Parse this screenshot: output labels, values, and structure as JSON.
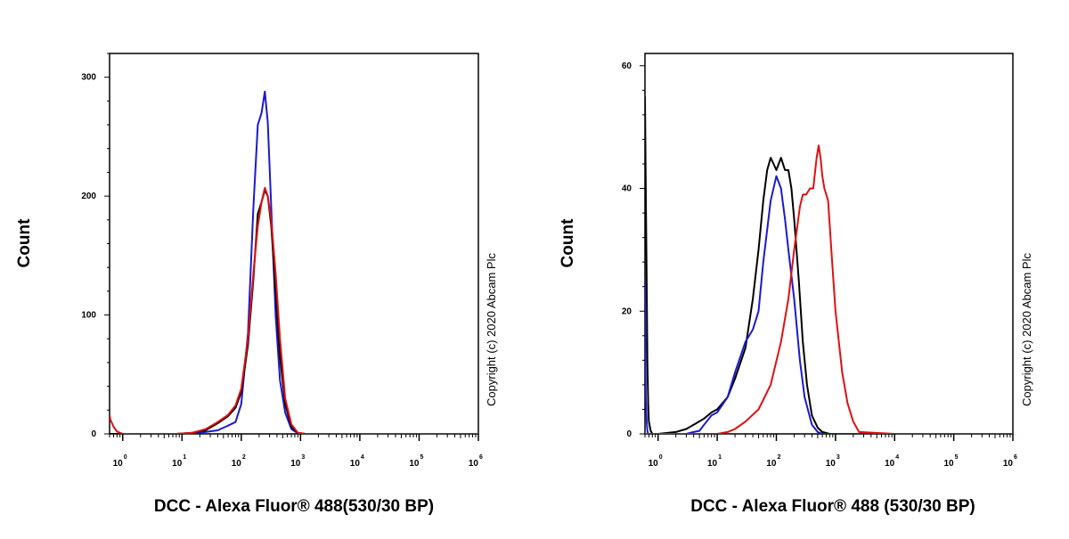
{
  "chart_data": [
    {
      "type": "line",
      "xlabel": "DCC - Alexa Fluor® 488(530/30 BP)",
      "ylabel": "Count",
      "x_scale": "log",
      "xlim": [
        0.6,
        1000000
      ],
      "ylim": [
        0,
        320
      ],
      "yticks": [
        0,
        100,
        200,
        300
      ],
      "xticks": [
        {
          "value": 1,
          "base": "10",
          "exp": "0"
        },
        {
          "value": 10,
          "base": "10",
          "exp": "1"
        },
        {
          "value": 100,
          "base": "10",
          "exp": "2"
        },
        {
          "value": 1000,
          "base": "10",
          "exp": "3"
        },
        {
          "value": 10000,
          "base": "10",
          "exp": "4"
        },
        {
          "value": 100000,
          "base": "10",
          "exp": "5"
        },
        {
          "value": 1000000,
          "base": "10",
          "exp": "6"
        }
      ],
      "copyright": "Copyright (c) 2020 Abcam Plc",
      "series": [
        {
          "color": "#1a1ad0",
          "x": [
            0.6,
            10,
            20,
            40,
            60,
            80,
            100,
            130,
            160,
            190,
            220,
            250,
            280,
            320,
            380,
            450,
            550,
            700,
            900,
            1200,
            10000,
            1000000
          ],
          "y": [
            0,
            0,
            1,
            3,
            7,
            10,
            25,
            85,
            190,
            260,
            270,
            288,
            262,
            190,
            100,
            45,
            18,
            4,
            0.5,
            0,
            0,
            0
          ]
        },
        {
          "color": "#000000",
          "x": [
            0.6,
            8,
            15,
            25,
            40,
            60,
            80,
            100,
            130,
            160,
            190,
            220,
            250,
            280,
            320,
            380,
            450,
            550,
            700,
            900,
            1200,
            10000,
            1000000
          ],
          "y": [
            0,
            0,
            1,
            3,
            9,
            15,
            22,
            35,
            75,
            130,
            185,
            195,
            205,
            200,
            175,
            120,
            65,
            25,
            6,
            1,
            0,
            0,
            0
          ]
        },
        {
          "color": "#e01010",
          "x": [
            0.6,
            0.62,
            0.7,
            0.8,
            1,
            8,
            15,
            25,
            40,
            60,
            80,
            100,
            130,
            160,
            190,
            220,
            250,
            280,
            320,
            380,
            450,
            550,
            700,
            900,
            1200,
            10000,
            1000000
          ],
          "y": [
            16,
            12,
            6,
            2,
            0,
            0,
            1,
            4,
            10,
            16,
            24,
            38,
            80,
            135,
            175,
            195,
            207,
            200,
            180,
            135,
            80,
            30,
            8,
            1,
            0,
            0,
            0
          ]
        }
      ]
    },
    {
      "type": "line",
      "xlabel": "DCC - Alexa Fluor® 488 (530/30 BP)",
      "ylabel": "Count",
      "x_scale": "log",
      "xlim": [
        0.6,
        1000000
      ],
      "ylim": [
        0,
        62
      ],
      "yticks": [
        0,
        20,
        40,
        60
      ],
      "xticks": [
        {
          "value": 1,
          "base": "10",
          "exp": "0"
        },
        {
          "value": 10,
          "base": "10",
          "exp": "1"
        },
        {
          "value": 100,
          "base": "10",
          "exp": "2"
        },
        {
          "value": 1000,
          "base": "10",
          "exp": "3"
        },
        {
          "value": 10000,
          "base": "10",
          "exp": "4"
        },
        {
          "value": 100000,
          "base": "10",
          "exp": "5"
        },
        {
          "value": 1000000,
          "base": "10",
          "exp": "6"
        }
      ],
      "copyright": "Copyright (c) 2020 Abcam Plc",
      "series": [
        {
          "color": "#000000",
          "x": [
            0.6,
            0.62,
            0.64,
            0.66,
            0.68,
            0.7,
            0.75,
            0.8,
            1,
            2,
            3,
            4,
            6,
            8,
            10,
            15,
            20,
            30,
            40,
            50,
            60,
            70,
            80,
            90,
            100,
            120,
            140,
            160,
            180,
            200,
            240,
            280,
            330,
            400,
            500,
            600,
            800,
            1000,
            10000,
            1000000
          ],
          "y": [
            55,
            40,
            25,
            12,
            5,
            2,
            0.5,
            0,
            0,
            0.3,
            0.8,
            1.5,
            2.5,
            3.5,
            4,
            6,
            9,
            14,
            22,
            30,
            38,
            43,
            45,
            44,
            43,
            45,
            43,
            43,
            40,
            35,
            25,
            15,
            8,
            3,
            1,
            0.3,
            0,
            0,
            0,
            0
          ]
        },
        {
          "color": "#1a1ad0",
          "x": [
            0.6,
            0.61,
            0.62,
            0.64,
            0.66,
            0.68,
            0.7,
            0.75,
            0.8,
            1,
            2,
            3,
            4,
            5,
            6,
            8,
            10,
            15,
            20,
            30,
            40,
            50,
            60,
            80,
            100,
            120,
            140,
            160,
            200,
            250,
            300,
            400,
            500,
            600,
            800,
            1000,
            10000,
            1000000
          ],
          "y": [
            25,
            14,
            6,
            2,
            0.5,
            0,
            0,
            0,
            0,
            0,
            0,
            0,
            0.3,
            0.5,
            1.5,
            3,
            3.5,
            6,
            10,
            15,
            17,
            20,
            28,
            38,
            42,
            40,
            35,
            30,
            22,
            12,
            6,
            1.5,
            0.3,
            0,
            0,
            0,
            0,
            0
          ]
        },
        {
          "color": "#e01010",
          "x": [
            0.6,
            10,
            15,
            20,
            30,
            50,
            80,
            120,
            160,
            200,
            250,
            280,
            320,
            370,
            420,
            480,
            520,
            560,
            600,
            650,
            750,
            850,
            1000,
            1300,
            1600,
            2000,
            2500,
            10000,
            1000000
          ],
          "y": [
            0,
            0,
            0.3,
            0.8,
            2,
            4,
            8,
            15,
            22,
            30,
            37,
            39,
            39,
            40,
            40,
            45,
            47,
            45,
            42,
            40,
            38,
            30,
            20,
            10,
            5,
            2,
            0.3,
            0,
            0
          ]
        }
      ]
    }
  ]
}
